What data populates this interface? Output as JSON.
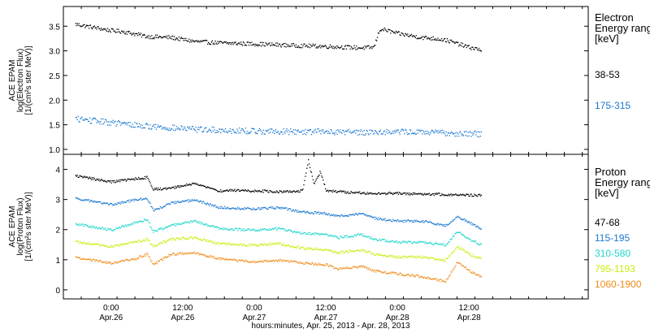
{
  "chart_data": [
    {
      "type": "scatter",
      "panel": "electron",
      "ylabel_lines": [
        "ACE EPAM",
        "log(Electron Flux)",
        "[1/(cm²s ster MeV)]"
      ],
      "ylim": [
        0.9,
        3.9
      ],
      "yticks": [
        1.0,
        1.5,
        2.0,
        2.5,
        3.0,
        3.5
      ],
      "ytick_labels": [
        "1.0",
        "1.5",
        "2.0",
        "2.5",
        "3.0",
        "3.5"
      ],
      "legend": {
        "title_lines": [
          "Electron",
          "Energy ranges",
          "[keV]"
        ],
        "entries": [
          {
            "label": "38-53",
            "color": "#000000"
          },
          {
            "label": "175-315",
            "color": "#1a78d0"
          }
        ]
      },
      "series": [
        {
          "name": "38-53",
          "color": "#000000",
          "x": [
            -6,
            0,
            2,
            6,
            10,
            14,
            18,
            24,
            30,
            36,
            40,
            42,
            44,
            45,
            46,
            48,
            52,
            55,
            56,
            60,
            62
          ],
          "y": [
            3.55,
            3.42,
            3.4,
            3.3,
            3.28,
            3.2,
            3.17,
            3.15,
            3.12,
            3.1,
            3.08,
            3.07,
            3.08,
            3.45,
            3.43,
            3.36,
            3.28,
            3.25,
            3.23,
            3.08,
            3.03
          ]
        },
        {
          "name": "175-315",
          "color": "#1a78d0",
          "x": [
            -6,
            0,
            6,
            12,
            18,
            24,
            30,
            36,
            42,
            48,
            54,
            62
          ],
          "y": [
            1.63,
            1.55,
            1.48,
            1.43,
            1.4,
            1.38,
            1.37,
            1.37,
            1.36,
            1.37,
            1.35,
            1.32
          ]
        }
      ]
    },
    {
      "type": "scatter",
      "panel": "proton",
      "ylabel_lines": [
        "ACE EPAM",
        "log(Proton Flux)",
        "[1/(cm²s ster MeV)]"
      ],
      "ylim": [
        -0.3,
        4.5
      ],
      "yticks": [
        0,
        1,
        2,
        3,
        4
      ],
      "ytick_labels": [
        "0",
        "1",
        "2",
        "3",
        "4"
      ],
      "legend": {
        "title_lines": [
          "Proton",
          "Energy ranges",
          "[keV]"
        ],
        "entries": [
          {
            "label": "47-68",
            "color": "#000000"
          },
          {
            "label": "115-195",
            "color": "#1a78d0"
          },
          {
            "label": "310-580",
            "color": "#1fd6cc"
          },
          {
            "label": "795-1193",
            "color": "#c8ee10"
          },
          {
            "label": "1060-1900",
            "color": "#f08c1a"
          }
        ]
      },
      "series": [
        {
          "name": "47-68",
          "color": "#000000",
          "x": [
            -6,
            0,
            4,
            6,
            7,
            10,
            14,
            18,
            20,
            24,
            28,
            32,
            33,
            34,
            35,
            36,
            40,
            44,
            48,
            52,
            56,
            62
          ],
          "y": [
            3.8,
            3.6,
            3.7,
            3.75,
            3.35,
            3.4,
            3.55,
            3.3,
            3.32,
            3.3,
            3.28,
            3.3,
            4.3,
            3.5,
            3.95,
            3.3,
            3.25,
            3.22,
            3.22,
            3.2,
            3.18,
            3.15
          ]
        },
        {
          "name": "115-195",
          "color": "#1a78d0",
          "x": [
            -6,
            0,
            4,
            6,
            7,
            10,
            14,
            18,
            24,
            28,
            32,
            36,
            38,
            42,
            44,
            48,
            52,
            56,
            58,
            60,
            62
          ],
          "y": [
            3.05,
            2.85,
            3.0,
            3.05,
            2.65,
            2.9,
            3.0,
            2.75,
            2.7,
            2.75,
            2.6,
            2.55,
            2.45,
            2.55,
            2.4,
            2.3,
            2.3,
            2.15,
            2.45,
            2.25,
            2.05
          ]
        },
        {
          "name": "310-580",
          "color": "#1fd6cc",
          "x": [
            -6,
            0,
            4,
            6,
            7,
            10,
            14,
            18,
            24,
            28,
            32,
            36,
            38,
            42,
            44,
            48,
            52,
            56,
            58,
            60,
            62
          ],
          "y": [
            2.2,
            2.0,
            2.25,
            2.35,
            1.95,
            2.15,
            2.3,
            2.05,
            2.0,
            2.05,
            1.9,
            1.85,
            1.75,
            1.85,
            1.7,
            1.6,
            1.6,
            1.5,
            1.95,
            1.7,
            1.5
          ]
        },
        {
          "name": "795-1193",
          "color": "#c8ee10",
          "x": [
            -6,
            0,
            4,
            6,
            7,
            10,
            14,
            18,
            24,
            28,
            32,
            36,
            38,
            42,
            44,
            48,
            52,
            56,
            58,
            60,
            62
          ],
          "y": [
            1.6,
            1.45,
            1.6,
            1.7,
            1.45,
            1.7,
            1.75,
            1.55,
            1.5,
            1.55,
            1.4,
            1.35,
            1.25,
            1.35,
            1.2,
            1.1,
            1.1,
            1.0,
            1.45,
            1.2,
            1.05
          ]
        },
        {
          "name": "1060-1900",
          "color": "#f08c1a",
          "x": [
            -6,
            0,
            4,
            6,
            7,
            10,
            14,
            18,
            24,
            28,
            32,
            36,
            38,
            42,
            44,
            48,
            52,
            56,
            58,
            60,
            62
          ],
          "y": [
            1.1,
            0.9,
            1.05,
            1.2,
            0.85,
            1.2,
            1.25,
            1.05,
            0.95,
            1.0,
            0.9,
            0.85,
            0.7,
            0.8,
            0.65,
            0.55,
            0.45,
            0.3,
            0.95,
            0.65,
            0.45
          ]
        }
      ]
    }
  ],
  "x_axis": {
    "xlabel": "hours:minutes, Apr. 25, 2013 - Apr. 28, 2013",
    "xlim": [
      -8,
      80
    ],
    "ticks": [
      {
        "x": 0,
        "time": "0:00",
        "date": "Apr.26"
      },
      {
        "x": 12,
        "time": "12:00",
        "date": "Apr.26"
      },
      {
        "x": 24,
        "time": "0:00",
        "date": "Apr.27"
      },
      {
        "x": 36,
        "time": "12:00",
        "date": "Apr.27"
      },
      {
        "x": 48,
        "time": "0:00",
        "date": "Apr.28"
      },
      {
        "x": 60,
        "time": "12:00",
        "date": "Apr.28"
      }
    ],
    "minor_step_hours": 3
  }
}
